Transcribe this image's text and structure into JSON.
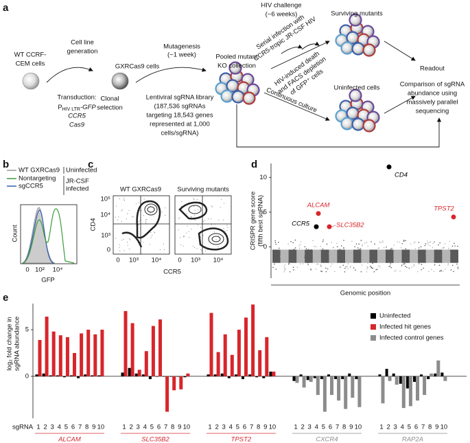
{
  "panel_labels": [
    "a",
    "b",
    "c",
    "d",
    "e"
  ],
  "panel_a": {
    "wt_cells": [
      "WT CCRF-",
      "CEM cells"
    ],
    "cell_line_generation": [
      "Cell line",
      "generation"
    ],
    "transduction": {
      "label": "Transduction:",
      "promoter": "P",
      "promoter_sub": "HIV LTR",
      "reporter": "-GFP",
      "genes": [
        "CCR5",
        "Cas9"
      ]
    },
    "clonal_selection": [
      "Clonal",
      "selection"
    ],
    "gxr_cells": "GXRCas9 cells",
    "mutagenesis": [
      "Mutagenesis",
      "(~1 week)"
    ],
    "library": [
      "Lentiviral sgRNA library",
      "(187,536 sgRNAs",
      "targeting 18,543 genes",
      "represented at 1,000",
      "cells/sgRNA)"
    ],
    "pooled": [
      "Pooled mutant",
      "KO collection"
    ],
    "hiv_challenge": [
      "HIV challenge",
      "(~6 weeks)"
    ],
    "serial_infection": [
      "Serial infection with",
      "CCR5-tropic JR-CSF HIV"
    ],
    "hiv_death": [
      "HIV-induced death",
      "and FACS depletion",
      "of GFP⁺ cells"
    ],
    "continuous_culture": "Continuous culture",
    "surviving_mutants": "Surviving mutants",
    "uninfected_cells": "Uninfected cells",
    "readout": "Readout",
    "comparison": [
      "Comparison of sgRNA",
      "abundance using",
      "massively parallel",
      "sequencing"
    ]
  },
  "panel_b": {
    "legend": [
      "WT GXRCas9",
      "Nontargeting",
      "sgCCR5"
    ],
    "conditions": [
      "Uninfected",
      "JR-CSF",
      "infected"
    ],
    "ylabel": "Count",
    "xlabel": "GFP",
    "xticks": [
      "0",
      "10²",
      "10⁴"
    ]
  },
  "panel_c": {
    "titles": [
      "WT GXRCas9",
      "Surviving mutants"
    ],
    "ylabel": "CD4",
    "xlabel": "CCR5",
    "yticks": [
      "10⁵",
      "10⁴",
      "10³",
      "0"
    ],
    "xticks": [
      "0",
      "10³",
      "10⁴"
    ]
  },
  "chart_data": [
    {
      "type": "scatter",
      "ylabel": [
        "CRISPR gene score",
        "(fifth best sgRNA)"
      ],
      "xlabel": "Genomic position",
      "ylim": [
        -4.5,
        12
      ],
      "yticks": [
        0,
        5,
        10
      ],
      "points": [
        {
          "name": "CD4",
          "value": 11.5,
          "color": "#000000"
        },
        {
          "name": "ALCAM",
          "value": 4.8,
          "color": "#d7262b"
        },
        {
          "name": "SLC35B2",
          "value": 2.9,
          "color": "#d7262b"
        },
        {
          "name": "CCR5",
          "value": 2.9,
          "color": "#000000"
        },
        {
          "name": "TPST2",
          "value": 4.3,
          "color": "#d7262b"
        }
      ]
    },
    {
      "type": "bar",
      "ylabel": [
        "log₂ fold change in",
        "sgRNA abundance"
      ],
      "x_label": "sgRNA",
      "ylim": [
        -4.5,
        7.8
      ],
      "yticks": [
        0,
        5
      ],
      "categories": [
        "1",
        "2",
        "3",
        "4",
        "5",
        "6",
        "7",
        "8",
        "9",
        "10",
        "1",
        "2",
        "3",
        "4",
        "5",
        "6",
        "7",
        "8",
        "9",
        "10",
        "1",
        "2",
        "3",
        "4",
        "5",
        "6",
        "7",
        "8",
        "9",
        "10",
        "1",
        "2",
        "3",
        "4",
        "5",
        "6",
        "7",
        "8",
        "9",
        "10",
        "1",
        "2",
        "3",
        "4",
        "5",
        "6",
        "7",
        "8",
        "9",
        "10"
      ],
      "groups": [
        {
          "name": "ALCAM",
          "color": "#d7262b"
        },
        {
          "name": "SLC35B2",
          "color": "#d7262b"
        },
        {
          "name": "TPST2",
          "color": "#d7262b"
        },
        {
          "name": "CXCR4",
          "color": "#8c8c8c"
        },
        {
          "name": "RAP2A",
          "color": "#8c8c8c"
        }
      ],
      "series": [
        {
          "name": "Uninfected",
          "color": "#000000",
          "values": [
            0.2,
            0.3,
            0.1,
            0.1,
            -0.1,
            0.1,
            -0.2,
            0.2,
            0.1,
            0.1,
            0.4,
            0.9,
            0.3,
            0.2,
            -0.3,
            0.0,
            0.0,
            0.0,
            0.0,
            -0.1,
            0.2,
            0.2,
            0.3,
            -0.2,
            0.2,
            -0.3,
            0.2,
            -0.1,
            -0.2,
            0.5,
            -0.5,
            0.2,
            -0.4,
            -0.2,
            -0.3,
            0.2,
            -0.3,
            -0.3,
            0.3,
            -0.3,
            0.2,
            0.8,
            0.3,
            -0.8,
            -1.3,
            -0.6,
            0.2,
            -0.3,
            0.3,
            0.4
          ]
        },
        {
          "name": "Infected hit genes",
          "color": "#d7262b",
          "values": [
            3.9,
            6.4,
            4.8,
            4.4,
            4.2,
            2.5,
            4.6,
            5.0,
            4.5,
            5.0,
            7.0,
            5.7,
            0.7,
            2.7,
            5.4,
            6.1,
            -3.8,
            -1.5,
            -1.4,
            0.3,
            6.8,
            2.6,
            4.5,
            2.3,
            5.0,
            6.3,
            7.7,
            2.8,
            4.2,
            0.5,
            null,
            null,
            null,
            null,
            null,
            null,
            null,
            null,
            null,
            null,
            null,
            null,
            null,
            null,
            null,
            null,
            null,
            null,
            null,
            null
          ]
        },
        {
          "name": "Infected control genes",
          "color": "#8c8c8c",
          "values": [
            null,
            null,
            null,
            null,
            null,
            null,
            null,
            null,
            null,
            null,
            null,
            null,
            null,
            null,
            null,
            null,
            null,
            null,
            null,
            null,
            null,
            null,
            null,
            null,
            null,
            null,
            null,
            null,
            null,
            null,
            -0.7,
            -1.2,
            -0.6,
            -2.0,
            -3.8,
            -2.0,
            -2.6,
            -3.5,
            -2.3,
            -3.3,
            -2.9,
            -0.5,
            -0.9,
            -3.4,
            -3.2,
            -2.6,
            -2.0,
            0.3,
            1.7,
            -0.5
          ]
        }
      ]
    }
  ]
}
